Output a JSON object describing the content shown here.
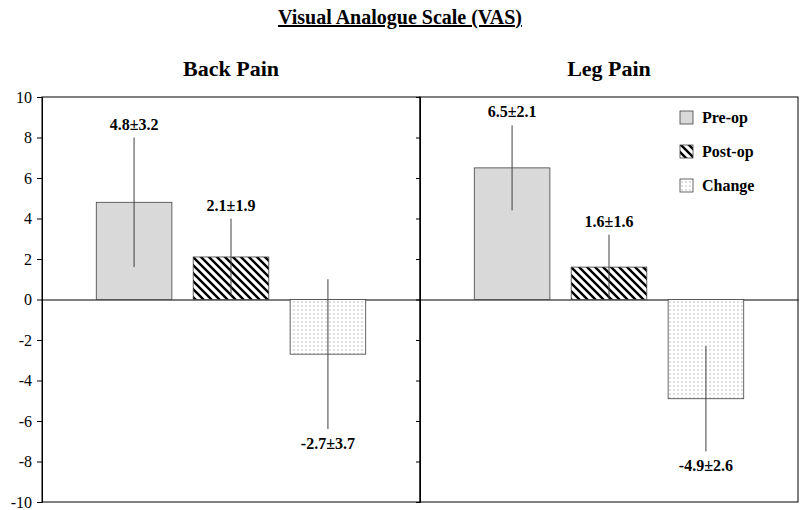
{
  "title": "Visual Analogue Scale (VAS)",
  "chart_data": [
    {
      "type": "bar",
      "title": "Back Pain",
      "categories": [
        null
      ],
      "series": [
        {
          "color": "#d9d9d9",
          "values": [
            4.8
          ],
          "errors": [
            3.2
          ],
          "value_labels": [
            "4.8±3.2"
          ]
        },
        {
          "color": "#000000",
          "values": [
            2.1
          ],
          "errors": [
            1.9
          ],
          "value_labels": [
            "2.1±1.9"
          ]
        },
        {
          "color": "#a6a6a6",
          "values": [
            -2.7
          ],
          "errors": [
            3.7
          ],
          "value_labels": [
            "-2.7±3.7"
          ]
        }
      ],
      "ylim": [
        -10,
        10
      ],
      "yticks": [
        -10,
        -8,
        -6,
        -4,
        -2,
        0,
        2,
        4,
        6,
        8,
        10
      ],
      "data_labels": true
    },
    {
      "type": "bar",
      "title": "Leg Pain",
      "categories": [
        null
      ],
      "series": [
        {
          "name": "Pre-op",
          "color": "#d9d9d9",
          "values": [
            6.5
          ],
          "errors": [
            2.1
          ],
          "value_labels": [
            "6.5±2.1"
          ]
        },
        {
          "name": "Post-op",
          "color": "#000000",
          "values": [
            1.6
          ],
          "errors": [
            1.6
          ],
          "value_labels": [
            "1.6±1.6"
          ]
        },
        {
          "name": "Change",
          "color": "#a6a6a6",
          "values": [
            -4.9
          ],
          "errors": [
            2.6
          ],
          "value_labels": [
            "-4.9±2.6"
          ]
        }
      ],
      "ylim": [
        -10,
        10
      ],
      "yticks": [
        -10,
        -8,
        -6,
        -4,
        -2,
        0,
        2,
        4,
        6,
        8,
        10
      ],
      "data_labels": true,
      "legend": "upper right",
      "tick_labels": false
    }
  ]
}
